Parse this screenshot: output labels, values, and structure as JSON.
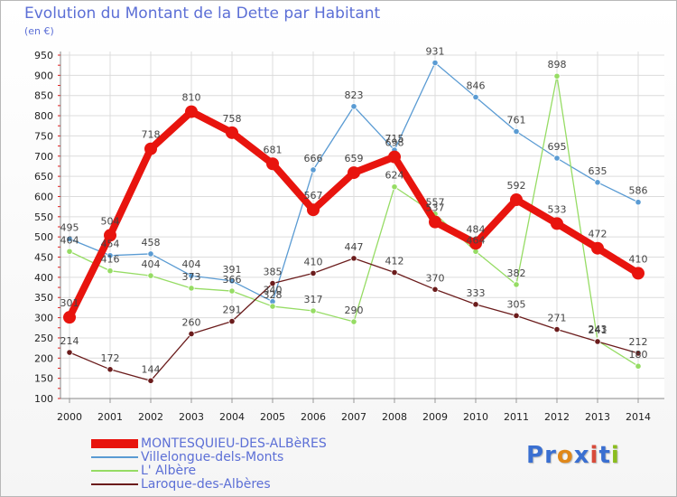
{
  "title": "Evolution du Montant de la Dette par Habitant",
  "unit": "(en €)",
  "brand": {
    "text": "Proxiti",
    "letter_colors": [
      "#3a6fd1",
      "#3a6fd1",
      "#e0881a",
      "#3a6fd1",
      "#d84a3a",
      "#3a6fd1",
      "#8bbd1e"
    ]
  },
  "chart_data": {
    "type": "line",
    "x": [
      2000,
      2001,
      2002,
      2003,
      2004,
      2005,
      2006,
      2007,
      2008,
      2009,
      2010,
      2011,
      2012,
      2013,
      2014
    ],
    "ylim": [
      100,
      950
    ],
    "yticks": [
      100,
      150,
      200,
      250,
      300,
      350,
      400,
      450,
      500,
      550,
      600,
      650,
      700,
      750,
      800,
      850,
      900,
      950
    ],
    "grid": true,
    "legend_position": "bottom-left",
    "series": [
      {
        "name": "MONTESQUIEU-DES-ALBèRES",
        "color": "#e8140e",
        "emphasis": true,
        "values": [
          301,
          504,
          718,
          810,
          758,
          681,
          567,
          659,
          698,
          537,
          484,
          592,
          533,
          472,
          410
        ]
      },
      {
        "name": "Villelongue-dels-Monts",
        "color": "#5a9bd3",
        "emphasis": false,
        "values": [
          495,
          454,
          458,
          404,
          391,
          340,
          666,
          823,
          715,
          931,
          846,
          761,
          695,
          635,
          586
        ]
      },
      {
        "name": "L' Albère",
        "color": "#96dc64",
        "emphasis": false,
        "values": [
          464,
          416,
          404,
          373,
          366,
          328,
          317,
          290,
          624,
          557,
          464,
          382,
          898,
          243,
          180
        ]
      },
      {
        "name": "Laroque-des-Albères",
        "color": "#6b1c1c",
        "emphasis": false,
        "values": [
          214,
          172,
          144,
          260,
          291,
          385,
          410,
          447,
          412,
          370,
          333,
          305,
          271,
          241,
          212
        ]
      }
    ]
  }
}
